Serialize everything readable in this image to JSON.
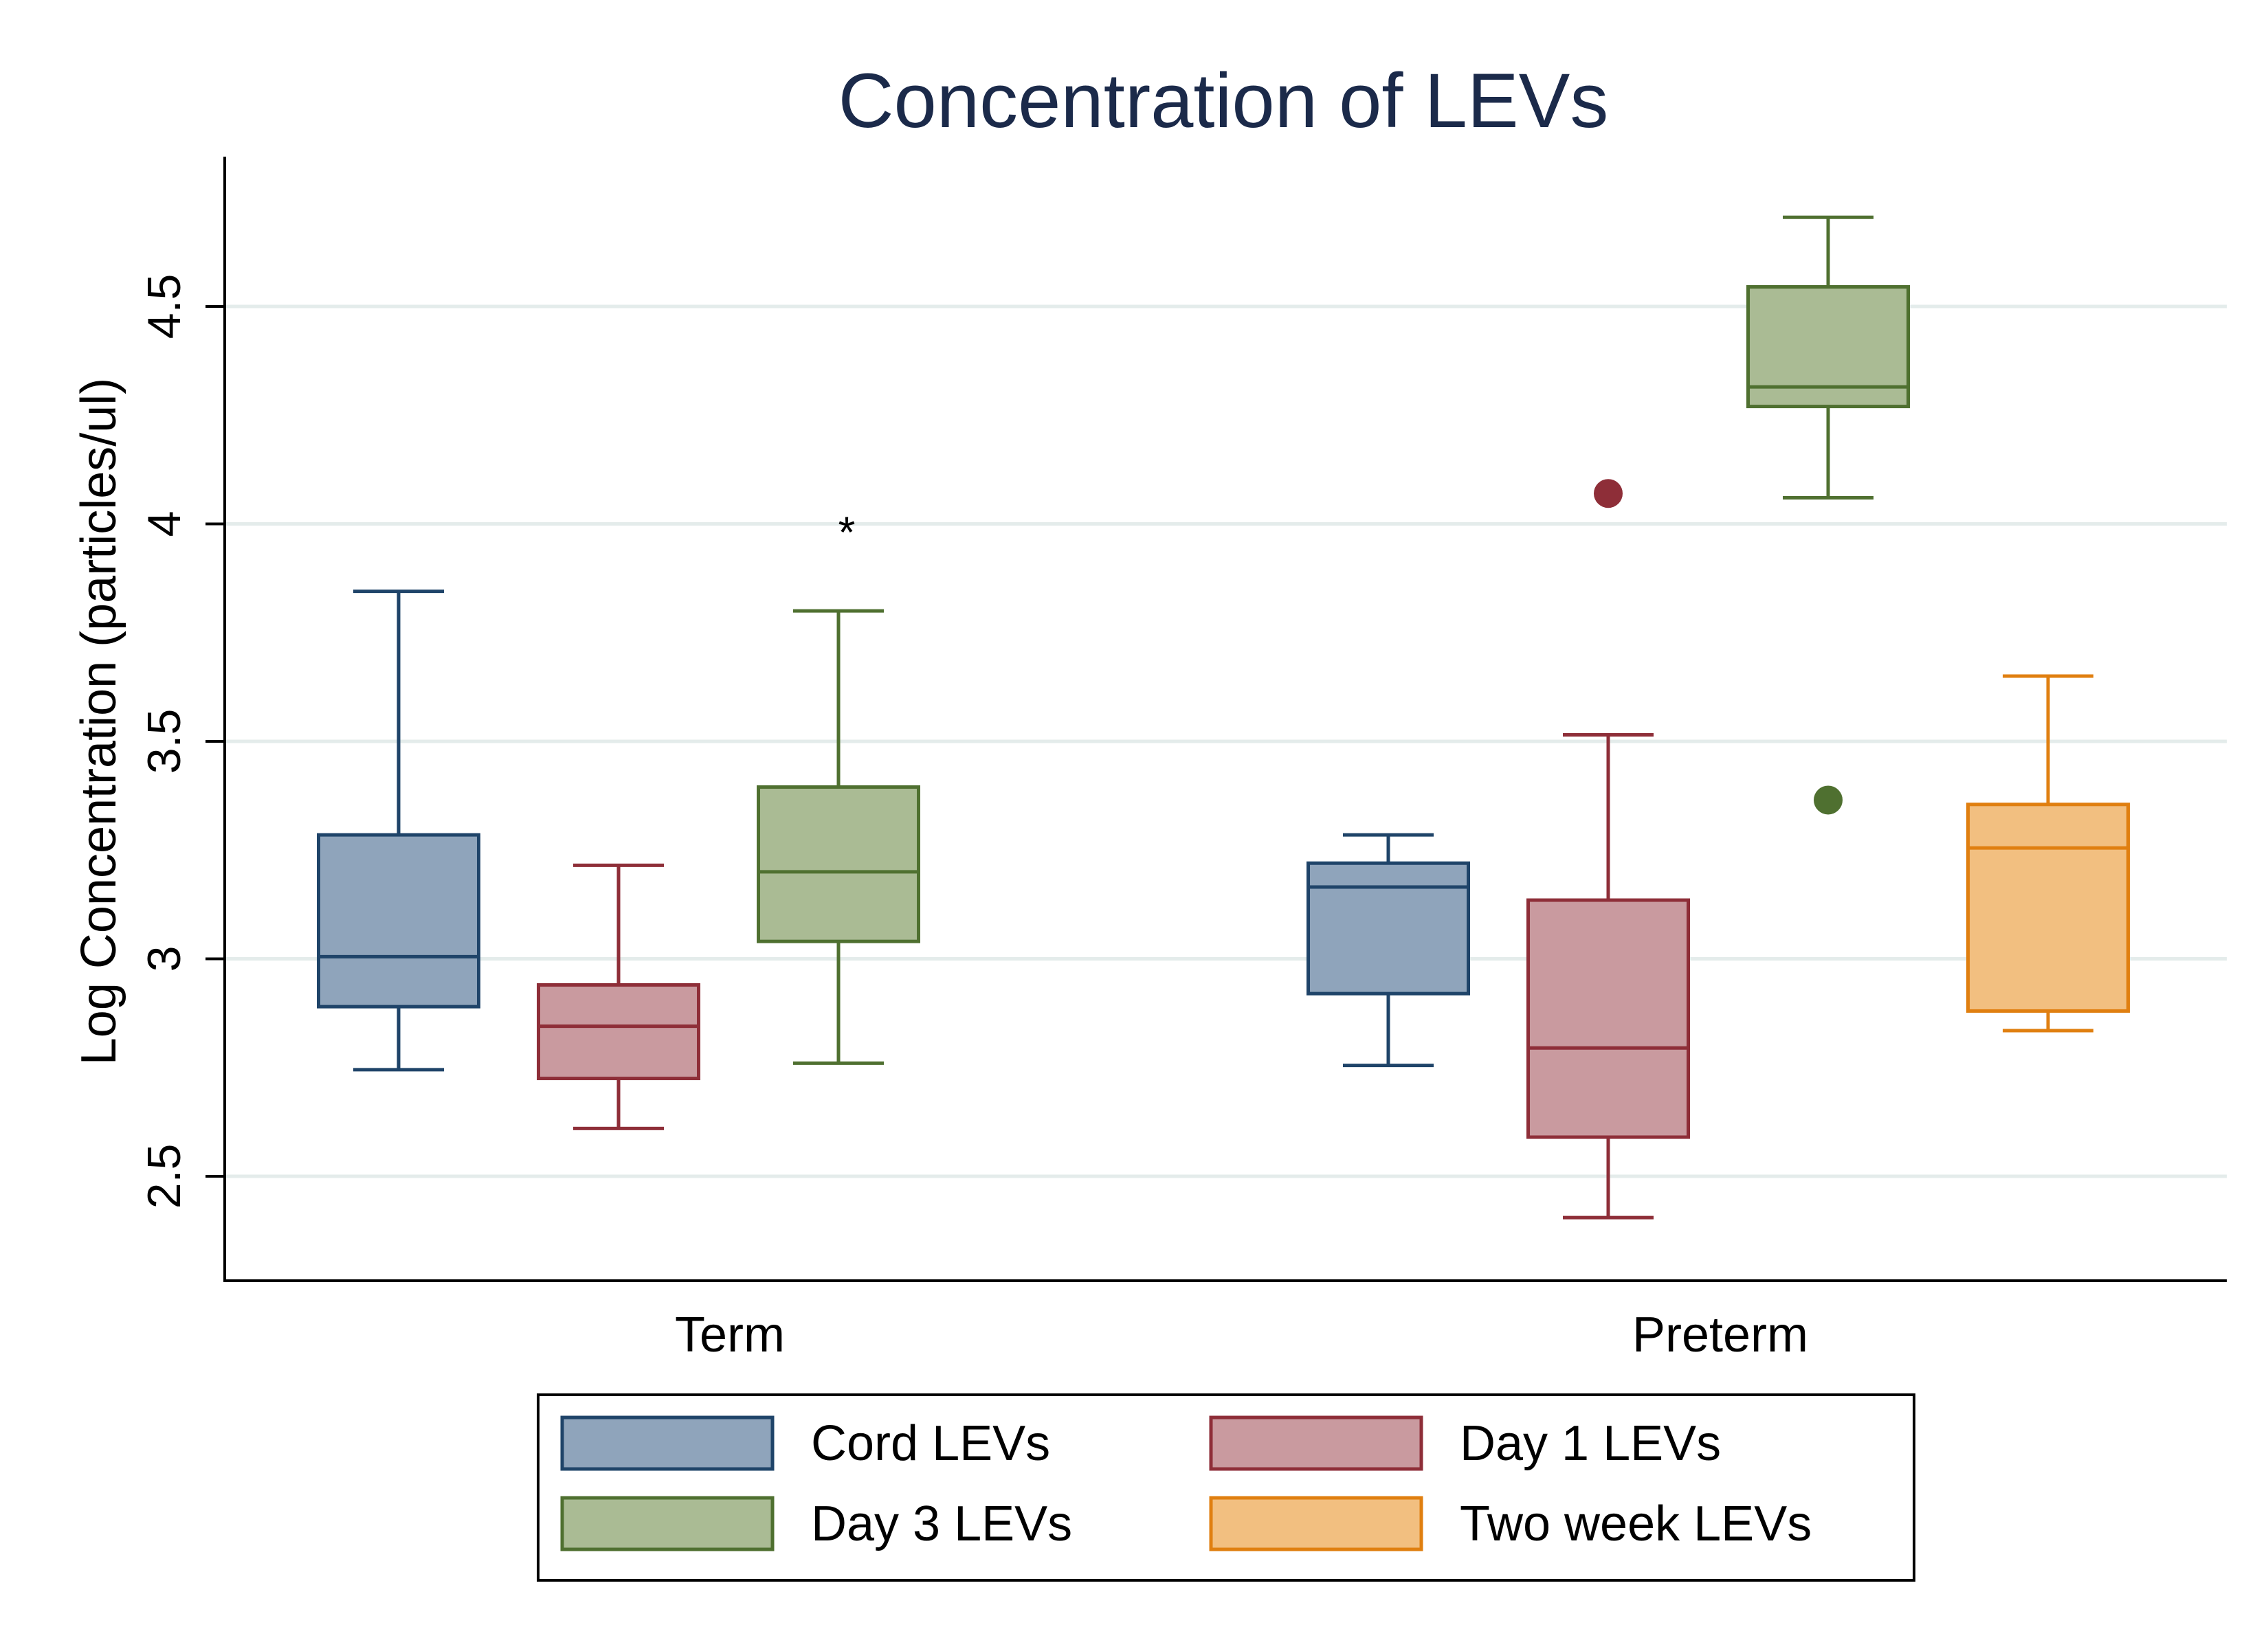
{
  "chart_data": {
    "type": "box",
    "title": "Concentration of LEVs",
    "xlabel": "",
    "ylabel": "Log Concentration (particles/ul)",
    "ylim": [
      2.27,
      4.85
    ],
    "yticks": [
      2.5,
      3,
      3.5,
      4,
      4.5
    ],
    "ytick_labels": [
      "2.5",
      "3",
      "3.5",
      "4",
      "4.5"
    ],
    "grid": true,
    "categories": [
      "Term",
      "Preterm"
    ],
    "legend": {
      "position": "bottom"
    },
    "series": [
      {
        "name": "Cord LEVs",
        "fill": "#8FA4BB",
        "stroke": "#1F4469",
        "boxes": [
          {
            "category": "Term",
            "whisker_low": 2.745,
            "q1": 2.89,
            "median": 3.005,
            "q3": 3.285,
            "whisker_high": 3.845,
            "outliers": []
          },
          {
            "category": "Preterm",
            "whisker_low": 2.755,
            "q1": 2.92,
            "median": 3.165,
            "q3": 3.22,
            "whisker_high": 3.285,
            "outliers": []
          }
        ]
      },
      {
        "name": "Day 1 LEVs",
        "fill": "#C99A9F",
        "stroke": "#8E2E38",
        "boxes": [
          {
            "category": "Term",
            "whisker_low": 2.61,
            "q1": 2.725,
            "median": 2.845,
            "q3": 2.94,
            "whisker_high": 3.215,
            "outliers": []
          },
          {
            "category": "Preterm",
            "whisker_low": 2.405,
            "q1": 2.59,
            "median": 2.795,
            "q3": 3.135,
            "whisker_high": 3.515,
            "outliers": [
              4.07
            ]
          }
        ]
      },
      {
        "name": "Day 3 LEVs",
        "fill": "#AABB94",
        "stroke": "#4F7030",
        "boxes": [
          {
            "category": "Term",
            "whisker_low": 2.76,
            "q1": 3.04,
            "median": 3.2,
            "q3": 3.395,
            "whisker_high": 3.8,
            "outliers": []
          },
          {
            "category": "Preterm",
            "whisker_low": 4.06,
            "q1": 4.27,
            "median": 4.315,
            "q3": 4.545,
            "whisker_high": 4.705,
            "outliers": [
              3.365
            ]
          }
        ]
      },
      {
        "name": "Two week LEVs",
        "fill": "#F2BF80",
        "stroke": "#E07F10",
        "boxes": [
          {
            "category": "Preterm",
            "whisker_low": 2.835,
            "q1": 2.88,
            "median": 3.255,
            "q3": 3.355,
            "whisker_high": 3.65,
            "outliers": []
          }
        ]
      }
    ],
    "annotations": [
      {
        "text": "*",
        "category": "Term",
        "series": "Day 3 LEVs",
        "y": 4.0
      }
    ]
  }
}
